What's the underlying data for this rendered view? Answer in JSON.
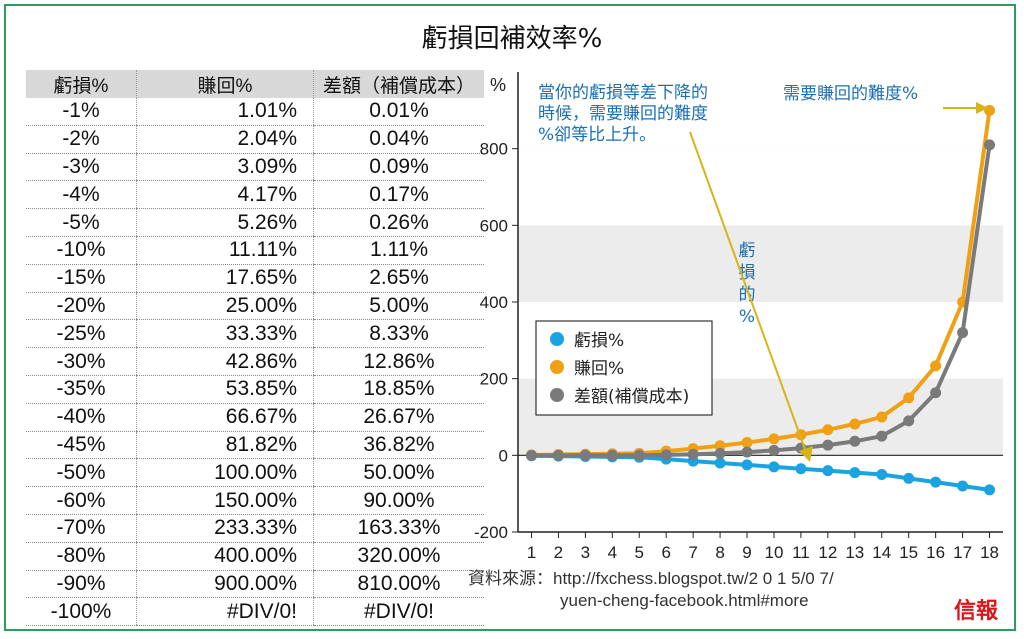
{
  "title": "虧損回補效率%",
  "table": {
    "headers": [
      "虧損%",
      "賺回%",
      "差額（補償成本）"
    ],
    "rows": [
      [
        "-1%",
        "1.01%",
        "0.01%"
      ],
      [
        "-2%",
        "2.04%",
        "0.04%"
      ],
      [
        "-3%",
        "3.09%",
        "0.09%"
      ],
      [
        "-4%",
        "4.17%",
        "0.17%"
      ],
      [
        "-5%",
        "5.26%",
        "0.26%"
      ],
      [
        "-10%",
        "11.11%",
        "1.11%"
      ],
      [
        "-15%",
        "17.65%",
        "2.65%"
      ],
      [
        "-20%",
        "25.00%",
        "5.00%"
      ],
      [
        "-25%",
        "33.33%",
        "8.33%"
      ],
      [
        "-30%",
        "42.86%",
        "12.86%"
      ],
      [
        "-35%",
        "53.85%",
        "18.85%"
      ],
      [
        "-40%",
        "66.67%",
        "26.67%"
      ],
      [
        "-45%",
        "81.82%",
        "36.82%"
      ],
      [
        "-50%",
        "100.00%",
        "50.00%"
      ],
      [
        "-60%",
        "150.00%",
        "90.00%"
      ],
      [
        "-70%",
        "233.33%",
        "163.33%"
      ],
      [
        "-80%",
        "400.00%",
        "320.00%"
      ],
      [
        "-90%",
        "900.00%",
        "810.00%"
      ],
      [
        "-100%",
        "#DIV/0!",
        "#DIV/0!"
      ]
    ]
  },
  "chart_data": {
    "type": "line",
    "title": "",
    "xlabel": "",
    "ylabel": "%",
    "x": [
      1,
      2,
      3,
      4,
      5,
      6,
      7,
      8,
      9,
      10,
      11,
      12,
      13,
      14,
      15,
      16,
      17,
      18
    ],
    "ylim": [
      -200,
      1000
    ],
    "yticks": [
      -200,
      0,
      200,
      400,
      600,
      800
    ],
    "xticks": [
      1,
      2,
      3,
      4,
      5,
      6,
      7,
      8,
      9,
      10,
      11,
      12,
      13,
      14,
      15,
      16,
      17,
      18
    ],
    "grid": "alternating horizontal bands",
    "legend_position": "center-left",
    "series": [
      {
        "name": "虧損%",
        "color": "#1aa3e0",
        "values": [
          -1,
          -2,
          -3,
          -4,
          -5,
          -10,
          -15,
          -20,
          -25,
          -30,
          -35,
          -40,
          -45,
          -50,
          -60,
          -70,
          -80,
          -90
        ]
      },
      {
        "name": "賺回%",
        "color": "#f0a015",
        "values": [
          1.01,
          2.04,
          3.09,
          4.17,
          5.26,
          11.11,
          17.65,
          25,
          33.33,
          42.86,
          53.85,
          66.67,
          81.82,
          100,
          150,
          233.33,
          400,
          900
        ]
      },
      {
        "name": "差額(補償成本)",
        "color": "#7a7a7a",
        "values": [
          0.01,
          0.04,
          0.09,
          0.17,
          0.26,
          1.11,
          2.65,
          5,
          8.33,
          12.86,
          18.85,
          26.67,
          36.82,
          50,
          90,
          163.33,
          320,
          810
        ]
      }
    ],
    "annotations": {
      "left_note": [
        "當你的虧損等差下降的",
        "時候，需要賺回的難度",
        "%卻等比上升。"
      ],
      "right_note": "需要賺回的難度%",
      "vertical_note": [
        "虧",
        "損",
        "的",
        "%"
      ]
    }
  },
  "source": {
    "line1": "資料來源：http://fxchess.blogspot.tw/2 0 1 5/0 7/",
    "line2": "yuen-cheng-facebook.html#more"
  },
  "logo": "信報",
  "colors": {
    "frame": "#2e9c5e",
    "annotation": "#1a6fb5",
    "arrow": "#d8b41a"
  }
}
